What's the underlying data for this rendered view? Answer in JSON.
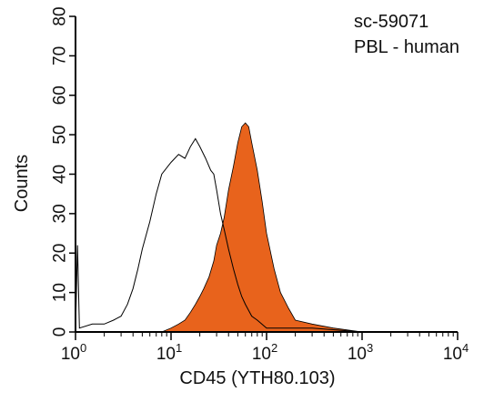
{
  "chart_data": {
    "type": "area",
    "xlabel": "CD45 (YTH80.103)",
    "ylabel": "Counts",
    "xscale": "log",
    "xlim": [
      1,
      10000
    ],
    "ylim": [
      0,
      80
    ],
    "yticks": [
      0,
      10,
      20,
      30,
      40,
      50,
      60,
      70,
      80
    ],
    "xticks": [
      {
        "base": "10",
        "exp": "0",
        "value": 1
      },
      {
        "base": "10",
        "exp": "1",
        "value": 10
      },
      {
        "base": "10",
        "exp": "2",
        "value": 100
      },
      {
        "base": "10",
        "exp": "3",
        "value": 1000
      },
      {
        "base": "10",
        "exp": "4",
        "value": 10000
      }
    ],
    "annotations": [
      "sc-59071",
      "PBL - human"
    ],
    "grid": false,
    "series": [
      {
        "style": "outline",
        "color": "#000000",
        "points": [
          [
            1.0,
            0
          ],
          [
            1.05,
            22
          ],
          [
            1.1,
            1
          ],
          [
            1.5,
            2
          ],
          [
            2,
            2
          ],
          [
            2.5,
            3
          ],
          [
            3,
            4
          ],
          [
            3.5,
            7
          ],
          [
            4,
            11
          ],
          [
            4.5,
            16
          ],
          [
            5,
            21
          ],
          [
            6,
            28
          ],
          [
            7,
            35
          ],
          [
            8,
            40
          ],
          [
            10,
            43
          ],
          [
            12,
            45
          ],
          [
            14,
            44
          ],
          [
            16,
            47
          ],
          [
            18,
            49
          ],
          [
            20,
            47
          ],
          [
            23,
            44
          ],
          [
            26,
            41
          ],
          [
            28,
            40
          ],
          [
            30,
            36
          ],
          [
            33,
            30
          ],
          [
            36,
            26
          ],
          [
            40,
            21
          ],
          [
            45,
            16
          ],
          [
            50,
            12
          ],
          [
            55,
            9
          ],
          [
            60,
            7
          ],
          [
            70,
            4
          ],
          [
            80,
            3
          ],
          [
            100,
            1
          ],
          [
            150,
            1
          ],
          [
            300,
            1
          ],
          [
            1000,
            0
          ],
          [
            10000,
            0
          ]
        ]
      },
      {
        "style": "filled",
        "color": "#E8631C",
        "points": [
          [
            1.0,
            0
          ],
          [
            5,
            0
          ],
          [
            8,
            0
          ],
          [
            10,
            1
          ],
          [
            12,
            2
          ],
          [
            14,
            3
          ],
          [
            16,
            5
          ],
          [
            18,
            7
          ],
          [
            20,
            9
          ],
          [
            22,
            11
          ],
          [
            25,
            14
          ],
          [
            28,
            18
          ],
          [
            30,
            22
          ],
          [
            33,
            25
          ],
          [
            36,
            29
          ],
          [
            40,
            36
          ],
          [
            45,
            42
          ],
          [
            50,
            48
          ],
          [
            55,
            52
          ],
          [
            60,
            53
          ],
          [
            65,
            52
          ],
          [
            70,
            48
          ],
          [
            80,
            41
          ],
          [
            90,
            33
          ],
          [
            100,
            25
          ],
          [
            120,
            16
          ],
          [
            140,
            10
          ],
          [
            170,
            6
          ],
          [
            200,
            3
          ],
          [
            300,
            2
          ],
          [
            500,
            1
          ],
          [
            1000,
            0
          ],
          [
            10000,
            0
          ]
        ]
      }
    ]
  }
}
